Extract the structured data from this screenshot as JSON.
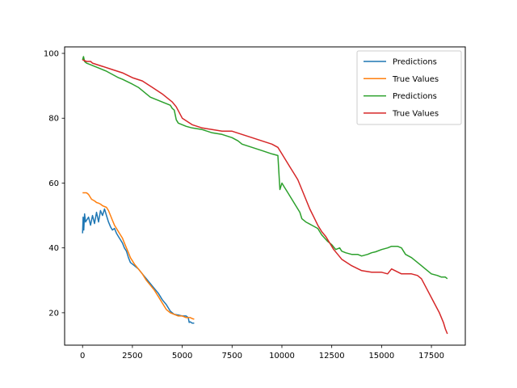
{
  "chart_data": {
    "type": "line",
    "title": "",
    "xlabel": "",
    "ylabel": "",
    "xlim": [
      -900,
      19200
    ],
    "ylim": [
      10,
      102
    ],
    "grid": false,
    "legend_placement": "top-right",
    "x_ticks": [
      0,
      2500,
      5000,
      7500,
      10000,
      12500,
      15000,
      17500
    ],
    "y_ticks": [
      20,
      40,
      60,
      80,
      100
    ],
    "series": [
      {
        "name": "Predictions",
        "color": "#1f77b4",
        "x": [
          0,
          30,
          60,
          100,
          150,
          200,
          300,
          400,
          500,
          600,
          700,
          800,
          900,
          1000,
          1100,
          1200,
          1300,
          1400,
          1500,
          1600,
          1700,
          1800,
          1900,
          2000,
          2100,
          2200,
          2300,
          2400,
          2500,
          2600,
          2800,
          3000,
          3200,
          3400,
          3600,
          3800,
          4000,
          4200,
          4400,
          4600,
          4800,
          5000,
          5200,
          5300,
          5350,
          5400,
          5500,
          5600
        ],
        "y": [
          44.5,
          49.5,
          45.5,
          50.5,
          48,
          48.5,
          49.5,
          47,
          50,
          47.5,
          51,
          48,
          51.5,
          50,
          52,
          50,
          48,
          46.5,
          45.5,
          46,
          44.5,
          43.5,
          42.5,
          41.5,
          40,
          39,
          37,
          35.5,
          35,
          34.5,
          33.5,
          32,
          30.5,
          29,
          27.5,
          26,
          24,
          22.5,
          20.5,
          19.5,
          19.3,
          19,
          19,
          18.5,
          17,
          17.2,
          16.8,
          16.8
        ]
      },
      {
        "name": "True Values",
        "color": "#ff7f0e",
        "x": [
          0,
          50,
          200,
          300,
          400,
          450,
          600,
          700,
          800,
          900,
          1000,
          1200,
          1300,
          1400,
          1500,
          1600,
          1700,
          1800,
          1900,
          2000,
          2100,
          2200,
          2300,
          2400,
          2500,
          2600,
          2800,
          3000,
          3200,
          3400,
          3600,
          3800,
          4000,
          4200,
          4400,
          4600,
          4800,
          5000,
          5200,
          5400,
          5500,
          5600
        ],
        "y": [
          57,
          57,
          57,
          56.5,
          55.5,
          55,
          54.5,
          54,
          53.8,
          53.5,
          53,
          52.5,
          51.5,
          50,
          48.5,
          47,
          46,
          45,
          44,
          43,
          41.5,
          40,
          38.5,
          37,
          36,
          35,
          33.5,
          32,
          30,
          28.5,
          27,
          25,
          23,
          21,
          20,
          19.5,
          19,
          19,
          18.5,
          18.5,
          18.2,
          18
        ]
      },
      {
        "name": "Predictions",
        "color": "#2ca02c",
        "x": [
          0,
          50,
          100,
          200,
          400,
          600,
          800,
          1000,
          1200,
          1500,
          1800,
          2000,
          2500,
          2800,
          3000,
          3200,
          3400,
          3600,
          3800,
          4000,
          4200,
          4400,
          4500,
          4600,
          4700,
          4800,
          5000,
          5200,
          5500,
          6000,
          6500,
          7000,
          7500,
          7800,
          8000,
          8500,
          9000,
          9500,
          9800,
          9850,
          9900,
          10000,
          10100,
          10300,
          10500,
          10700,
          10900,
          11000,
          11200,
          11500,
          11800,
          12000,
          12300,
          12500,
          12700,
          12900,
          13000,
          13200,
          13500,
          13800,
          14000,
          14300,
          14500,
          14700,
          15000,
          15300,
          15500,
          15800,
          16000,
          16200,
          16500,
          16800,
          17000,
          17300,
          17500,
          17800,
          18000,
          18200,
          18300
        ],
        "y": [
          98,
          99,
          97.5,
          97,
          96.5,
          96,
          95.5,
          95,
          94.5,
          93.5,
          92.5,
          92,
          90.5,
          89.5,
          88.5,
          87.5,
          86.5,
          86,
          85.5,
          85,
          84.5,
          84,
          83,
          82.5,
          79.5,
          78.5,
          78,
          77.5,
          77,
          76.5,
          75.5,
          75,
          74,
          73,
          72,
          71,
          70,
          69,
          68.5,
          63,
          58,
          60,
          59,
          57,
          55,
          53,
          51,
          49,
          48,
          47,
          46,
          44,
          42,
          41,
          39.5,
          40,
          39,
          38.5,
          38,
          38,
          37.5,
          38,
          38.5,
          38.8,
          39.5,
          40,
          40.5,
          40.5,
          40,
          38,
          37,
          35.5,
          34.5,
          33,
          32,
          31.5,
          31,
          31,
          30.5
        ]
      },
      {
        "name": "True Values",
        "color": "#d62728",
        "x": [
          0,
          200,
          400,
          500,
          1000,
          1500,
          2000,
          2500,
          3000,
          3500,
          4000,
          4300,
          4500,
          4700,
          5000,
          5500,
          6000,
          6500,
          7000,
          7500,
          8000,
          8500,
          9000,
          9500,
          9800,
          10000,
          10200,
          10400,
          10600,
          10800,
          11000,
          11200,
          11400,
          11600,
          11800,
          12000,
          12200,
          12400,
          12600,
          12800,
          13000,
          13500,
          14000,
          14500,
          15000,
          15300,
          15500,
          16000,
          16500,
          16800,
          17000,
          17300,
          17600,
          17900,
          18100,
          18200,
          18300
        ],
        "y": [
          98,
          97.5,
          97.5,
          97,
          96,
          95,
          94,
          92.5,
          91.5,
          89.5,
          87.5,
          86,
          85,
          83.5,
          80,
          78,
          77,
          76.5,
          76,
          76,
          75,
          74,
          73,
          72,
          71,
          69,
          67,
          65,
          63,
          61,
          58,
          55,
          52,
          49.5,
          47,
          45,
          43.5,
          41.5,
          39.5,
          38,
          36.5,
          34.5,
          33,
          32.5,
          32.5,
          32,
          33.5,
          32,
          32,
          31.5,
          30.5,
          27,
          23.5,
          20,
          17,
          15,
          13.5
        ]
      }
    ]
  }
}
